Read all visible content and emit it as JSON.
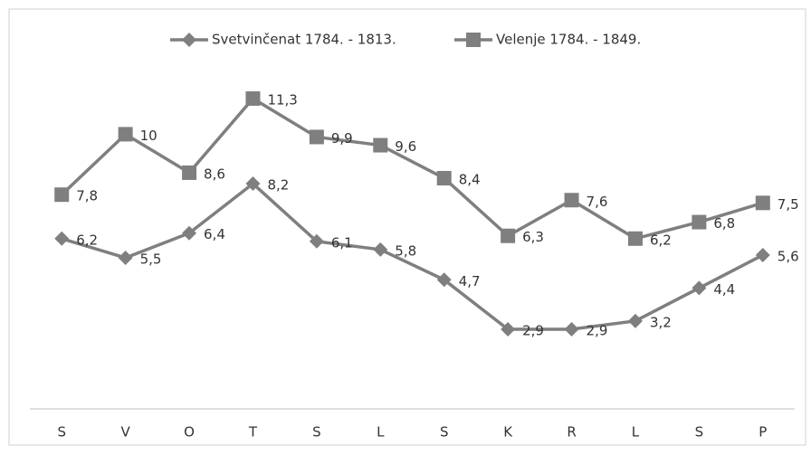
{
  "chart_data": {
    "type": "line",
    "categories": [
      "S",
      "V",
      "O",
      "T",
      "S",
      "L",
      "S",
      "K",
      "R",
      "L",
      "S",
      "P"
    ],
    "series": [
      {
        "name": "Svetvinčenat 1784. - 1813.",
        "color": "#7f7f7f",
        "marker": "diamond",
        "values": [
          6.2,
          5.5,
          6.4,
          8.2,
          6.1,
          5.8,
          4.7,
          2.9,
          2.9,
          3.2,
          4.4,
          5.6
        ],
        "value_labels": [
          "6,2",
          "5,5",
          "6,4",
          "8,2",
          "6,1",
          "5,8",
          "4,7",
          "2,9",
          "2,9",
          "3,2",
          "4,4",
          "5,6"
        ]
      },
      {
        "name": "Velenje 1784. - 1849.",
        "color": "#7f7f7f",
        "marker": "square",
        "values": [
          7.8,
          10,
          8.6,
          11.3,
          9.9,
          9.6,
          8.4,
          6.3,
          7.6,
          6.2,
          6.8,
          7.5
        ],
        "value_labels": [
          "7,8",
          "10",
          "8,6",
          "11,3",
          "9,9",
          "9,6",
          "8,4",
          "6,3",
          "7,6",
          "6,2",
          "6,8",
          "7,5"
        ]
      }
    ],
    "legend": "top"
  }
}
